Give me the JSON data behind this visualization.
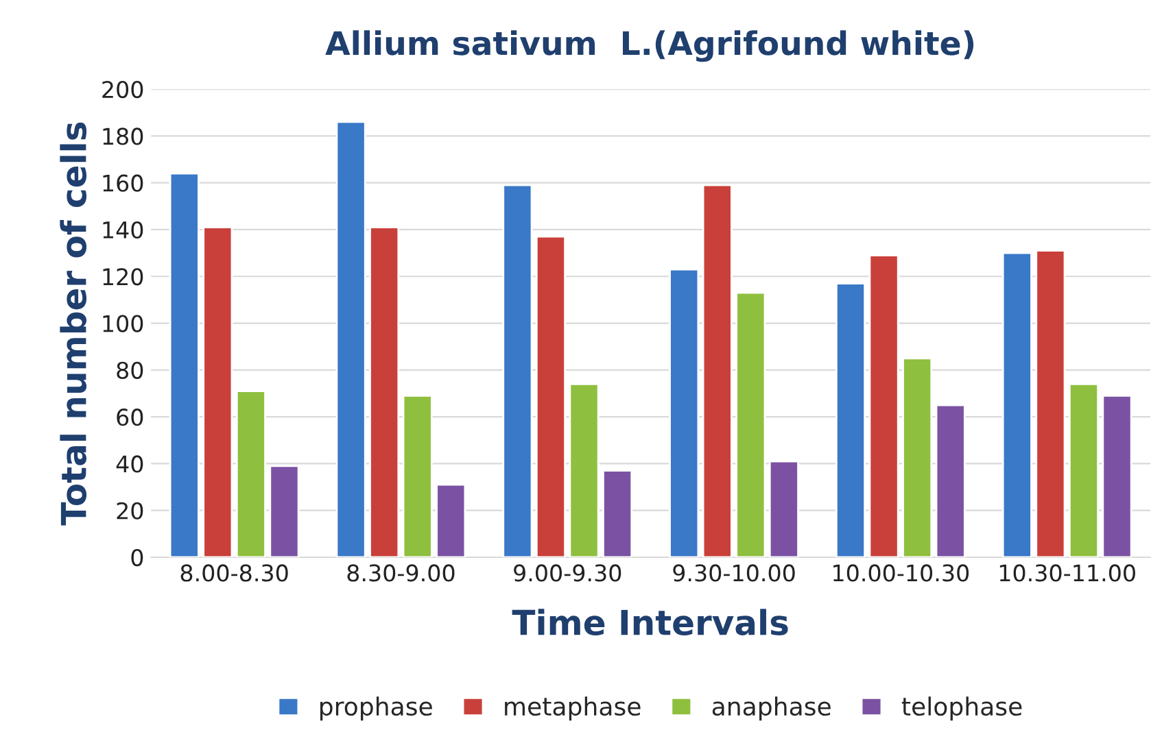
{
  "chart_data": {
    "type": "bar",
    "title": "Allium sativum  L.(Agrifound white)",
    "xlabel": "Time Intervals",
    "ylabel": "Total number of cells",
    "categories": [
      "8.00-8.30",
      "8.30-9.00",
      "9.00-9.30",
      "9.30-10.00",
      "10.00-10.30",
      "10.30-11.00"
    ],
    "series": [
      {
        "name": "prophase",
        "color": "#3a78c8",
        "values": [
          164,
          186,
          159,
          123,
          117,
          130
        ]
      },
      {
        "name": "metaphase",
        "color": "#c9403a",
        "values": [
          141,
          141,
          137,
          159,
          129,
          131
        ]
      },
      {
        "name": "anaphase",
        "color": "#8fbf3f",
        "values": [
          71,
          69,
          74,
          113,
          85,
          74
        ]
      },
      {
        "name": "telophase",
        "color": "#7b52a3",
        "values": [
          39,
          31,
          37,
          41,
          65,
          69
        ]
      }
    ],
    "ylim": [
      0,
      200
    ],
    "yticks": [
      0,
      20,
      40,
      60,
      80,
      100,
      120,
      140,
      160,
      180,
      200
    ],
    "grid": "y",
    "legend": "bottom"
  }
}
